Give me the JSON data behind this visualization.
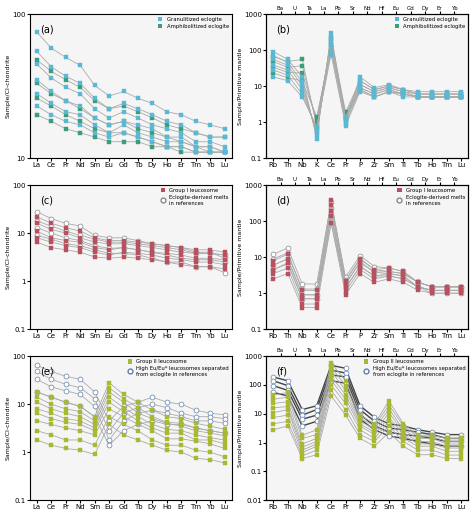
{
  "panel_a": {
    "label": "(a)",
    "elements": [
      "La",
      "Ce",
      "Pr",
      "Nd",
      "Sm",
      "Eu",
      "Gd",
      "Tb",
      "Dy",
      "Ho",
      "Er",
      "Tm",
      "Yb",
      "Lu"
    ],
    "ylabel": "Sample/CI-chondrite",
    "ylim": [
      10,
      100
    ],
    "yticks": [
      10,
      100
    ],
    "ytick_labels": [
      "10",
      "100"
    ],
    "color_gran": "#5bb8d4",
    "color_amphi": "#3a9e78",
    "legend_gran": "Granulitized eclogite",
    "legend_amphi": "Amphibolitized eclogite",
    "series_gran": [
      [
        75,
        58,
        50,
        44,
        32,
        27,
        29,
        26,
        24,
        21,
        20,
        18,
        17,
        16
      ],
      [
        55,
        43,
        37,
        33,
        26,
        22,
        24,
        22,
        20,
        18,
        17,
        15,
        14,
        14
      ],
      [
        45,
        36,
        31,
        28,
        22,
        19,
        21,
        19,
        17,
        16,
        15,
        13,
        13,
        12
      ],
      [
        35,
        29,
        25,
        23,
        19,
        17,
        18,
        17,
        16,
        14,
        14,
        12,
        12,
        11
      ],
      [
        28,
        24,
        21,
        20,
        17,
        15,
        17,
        15,
        14,
        13,
        13,
        12,
        11,
        11
      ],
      [
        23,
        20,
        18,
        17,
        15,
        14,
        15,
        14,
        13,
        12,
        12,
        11,
        11,
        11
      ]
    ],
    "series_amphi": [
      [
        48,
        40,
        35,
        31,
        25,
        22,
        23,
        21,
        19,
        17,
        16,
        15,
        14,
        14
      ],
      [
        33,
        28,
        25,
        22,
        19,
        17,
        18,
        16,
        15,
        14,
        13,
        12,
        12,
        11
      ],
      [
        26,
        23,
        20,
        18,
        16,
        15,
        15,
        14,
        13,
        12,
        12,
        11,
        11,
        11
      ],
      [
        20,
        18,
        16,
        15,
        14,
        13,
        13,
        13,
        12,
        12,
        11,
        11,
        11,
        11
      ]
    ]
  },
  "panel_b": {
    "label": "(b)",
    "elements_top": [
      "Ba",
      "U",
      "Ta",
      "La",
      "Pb",
      "Sr",
      "Nd",
      "Hf",
      "Eu",
      "Gd",
      "Dy",
      "Er",
      "Yb"
    ],
    "elements_bot": [
      "Rb",
      "Th",
      "Nb",
      "K",
      "Ce",
      "Pr",
      "P",
      "Zr",
      "Sm",
      "Ti",
      "Tb",
      "Ho",
      "Tm",
      "Lu"
    ],
    "ylabel": "Sample/Primitive mantle",
    "ylim_log": [
      0.1,
      1000
    ],
    "yticks": [
      0.1,
      1,
      10,
      100,
      1000
    ],
    "ytick_labels": [
      "0.1",
      "1",
      "10",
      "100",
      "1000"
    ],
    "color_gran": "#5bb8d4",
    "color_amphi": "#3a9e78",
    "series_gran": [
      [
        90,
        55,
        18,
        0.35,
        290,
        1.1,
        18,
        9,
        11,
        8,
        7,
        7,
        7,
        7
      ],
      [
        70,
        45,
        13,
        0.45,
        230,
        1.3,
        14,
        8,
        10,
        8,
        6,
        6,
        6,
        6
      ],
      [
        55,
        38,
        10,
        0.5,
        185,
        1.2,
        11,
        7,
        9,
        7,
        6,
        6,
        6,
        6
      ],
      [
        38,
        28,
        8,
        0.55,
        140,
        1.1,
        9,
        6,
        8,
        6,
        5,
        5,
        5,
        5
      ],
      [
        28,
        20,
        6,
        0.65,
        95,
        0.9,
        8,
        5,
        7,
        6,
        5,
        5,
        5,
        5
      ],
      [
        18,
        14,
        5,
        0.75,
        75,
        0.8,
        7,
        5,
        7,
        5,
        5,
        5,
        5,
        5
      ]
    ],
    "series_amphi": [
      [
        65,
        48,
        55,
        0.75,
        210,
        1.9,
        14,
        8,
        10,
        8,
        6,
        6,
        6,
        6
      ],
      [
        48,
        33,
        37,
        0.95,
        170,
        1.7,
        11,
        7,
        9,
        7,
        5,
        5,
        5,
        5
      ],
      [
        33,
        24,
        23,
        1.15,
        140,
        1.4,
        9,
        6,
        8,
        6,
        5,
        5,
        5,
        5
      ],
      [
        23,
        17,
        14,
        1.4,
        110,
        1.2,
        8,
        5,
        7,
        6,
        5,
        5,
        5,
        5
      ]
    ]
  },
  "panel_c": {
    "label": "(c)",
    "elements": [
      "La",
      "Ce",
      "Pr",
      "Nd",
      "Sm",
      "Eu",
      "Gd",
      "Tb",
      "Dy",
      "Ho",
      "Er",
      "Tm",
      "Yb",
      "Lu"
    ],
    "ylabel": "Sample/CI-chondrite",
    "ylim": [
      0.1,
      100
    ],
    "yticks": [
      0.1,
      1,
      10,
      100
    ],
    "ytick_labels": [
      "0.1",
      "1",
      "10",
      "100"
    ],
    "color_groupI": "#b85060",
    "color_eclo": "#b0b0b0",
    "legend_groupI": "Group I leucosome",
    "legend_eclo": "Eclogite-derived melts\nin references",
    "series_groupI": [
      [
        22,
        16,
        13,
        11,
        8,
        7,
        7,
        6.5,
        6,
        5.5,
        5,
        4.5,
        4.5,
        4
      ],
      [
        16,
        12,
        10,
        8,
        6.5,
        6,
        6,
        5.5,
        5,
        4.5,
        4,
        3.8,
        3.8,
        3.5
      ],
      [
        11,
        8,
        7,
        6.5,
        5,
        4.5,
        5,
        4.5,
        4,
        3.8,
        3.5,
        3,
        3,
        2.8
      ],
      [
        8,
        6.5,
        5.5,
        5,
        4,
        3.5,
        4,
        3.8,
        3.5,
        3,
        2.8,
        2.5,
        2.5,
        2.2
      ],
      [
        6.5,
        5,
        4.5,
        4,
        3.2,
        3,
        3.2,
        3,
        2.8,
        2.5,
        2.2,
        2,
        2,
        1.8
      ]
    ],
    "series_eclo": [
      [
        28,
        20,
        16,
        14,
        9,
        8,
        8,
        7,
        6,
        5.5,
        5,
        4,
        4,
        3
      ],
      [
        18,
        14,
        11,
        9,
        7.5,
        6.5,
        6.5,
        6,
        5.5,
        5,
        4.5,
        3.8,
        3.8,
        3.5
      ],
      [
        13,
        10,
        8,
        7,
        5.5,
        4.8,
        5,
        4.5,
        4,
        3.5,
        3,
        2.8,
        2.8,
        2.5
      ],
      [
        9,
        7.5,
        6,
        5.5,
        4.5,
        3.8,
        3.8,
        3.5,
        3,
        2.5,
        2.5,
        2,
        2,
        1.5
      ]
    ]
  },
  "panel_d": {
    "label": "(d)",
    "elements_top": [
      "Ba",
      "U",
      "Ta",
      "La",
      "Pb",
      "Sr",
      "Nd",
      "Hf",
      "Eu",
      "Gd",
      "Dy",
      "Er",
      "Yb"
    ],
    "elements_bot": [
      "Rb",
      "Th",
      "Nb",
      "K",
      "Ce",
      "Pr",
      "P",
      "Zr",
      "Sm",
      "Ti",
      "Tb",
      "Ho",
      "Tm",
      "Lu"
    ],
    "ylabel": "Sample/Primitive mantle",
    "ylim_log": [
      0.1,
      1000
    ],
    "yticks": [
      0.1,
      1,
      10,
      100,
      1000
    ],
    "ytick_labels": [
      "0.1",
      "1",
      "10",
      "100",
      "1000"
    ],
    "color_groupI": "#b85060",
    "color_eclo": "#b0b0b0",
    "series_groupI": [
      [
        8,
        12,
        1.2,
        1.2,
        380,
        2.2,
        9,
        4.5,
        5,
        4,
        2,
        1.5,
        1.5,
        1.5
      ],
      [
        6,
        9,
        0.9,
        0.9,
        280,
        1.8,
        7,
        3.8,
        4,
        3.5,
        2,
        1.5,
        1.5,
        1.5
      ],
      [
        4.5,
        7,
        0.7,
        0.7,
        190,
        1.4,
        5.5,
        3,
        3.5,
        3,
        1.5,
        1.2,
        1.2,
        1.2
      ],
      [
        3.5,
        5,
        0.5,
        0.5,
        140,
        1.1,
        4.5,
        2.5,
        3,
        2.5,
        1.5,
        1.2,
        1.2,
        1.2
      ],
      [
        2.5,
        3.5,
        0.4,
        0.4,
        90,
        0.9,
        3.5,
        2,
        2.5,
        2,
        1.2,
        1,
        1,
        1
      ]
    ],
    "series_eclo": [
      [
        12,
        18,
        1.8,
        1.8,
        330,
        2.8,
        11,
        5.5,
        5,
        4,
        2,
        1.5,
        1.5,
        1.5
      ],
      [
        9,
        13,
        1.3,
        1.3,
        230,
        2.3,
        9,
        4.5,
        4,
        3.5,
        2,
        1.5,
        1.5,
        1.5
      ],
      [
        6,
        9,
        0.9,
        0.9,
        140,
        1.8,
        7.5,
        3.8,
        3.5,
        3,
        1.5,
        1.2,
        1.2,
        1.2
      ],
      [
        4.5,
        6.5,
        0.7,
        0.7,
        90,
        1.4,
        5.5,
        3,
        3,
        2.5,
        1.5,
        1,
        1,
        1
      ]
    ]
  },
  "panel_e": {
    "label": "(e)",
    "elements": [
      "La",
      "Ce",
      "Pr",
      "Nd",
      "Sm",
      "Eu",
      "Gd",
      "Tb",
      "Dy",
      "Ho",
      "Er",
      "Tm",
      "Yb",
      "Lu"
    ],
    "ylabel": "Sample/CI-chondrite",
    "ylim": [
      0.1,
      100
    ],
    "yticks": [
      0.1,
      1,
      10,
      100
    ],
    "ytick_labels": [
      "0.1",
      "1",
      "10",
      "100"
    ],
    "color_groupII": "#a8b830",
    "color_high": "#90b8d8",
    "legend_groupII": "Group II leucosome",
    "legend_high": "High Eu/Eu* leucosomes separated\nfrom eclogite in references",
    "series_groupII": [
      [
        18,
        14,
        11,
        9,
        5.5,
        28,
        16,
        11,
        7.5,
        5.5,
        5,
        4,
        3.5,
        3
      ],
      [
        14,
        10,
        8,
        7,
        4.5,
        22,
        13,
        8.5,
        5.5,
        4.2,
        4,
        3.2,
        2.8,
        2.5
      ],
      [
        11,
        8,
        6.5,
        5.5,
        3.8,
        18,
        11,
        6.5,
        5,
        4,
        3.5,
        2.8,
        2.5,
        2.2
      ],
      [
        8,
        6.5,
        5,
        4.5,
        3.2,
        14,
        8.5,
        5.5,
        3.8,
        3,
        2.8,
        2.3,
        2,
        1.8
      ],
      [
        6.5,
        5,
        4.2,
        3.8,
        2.8,
        11,
        7,
        4.5,
        3.2,
        2.5,
        2.5,
        1.8,
        1.8,
        1.5
      ],
      [
        4.5,
        3.8,
        3.2,
        2.8,
        2.3,
        8,
        5.5,
        3.8,
        2.8,
        1.9,
        1.9,
        1.7,
        1.5,
        1.2
      ],
      [
        2.8,
        2.3,
        1.8,
        1.8,
        1.4,
        5.5,
        3.8,
        2.8,
        1.8,
        1.4,
        1.4,
        1.1,
        1,
        0.8
      ],
      [
        1.8,
        1.4,
        1.2,
        1.1,
        0.9,
        3.8,
        2.3,
        1.8,
        1.4,
        1.1,
        1,
        0.75,
        0.7,
        0.6
      ]
    ],
    "series_high": [
      [
        65,
        48,
        38,
        33,
        18,
        4.5,
        9,
        11,
        14,
        11,
        10,
        7.5,
        6.5,
        6
      ],
      [
        48,
        33,
        26,
        22,
        13,
        2.8,
        6.5,
        8.5,
        10,
        8.5,
        6.5,
        5.5,
        5.5,
        5
      ],
      [
        33,
        23,
        19,
        16,
        9,
        1.8,
        4.5,
        6.5,
        7.5,
        6.5,
        5.5,
        4.5,
        4.5,
        4
      ],
      [
        18,
        14,
        11,
        9,
        5.5,
        1.4,
        2.8,
        3.8,
        4.5,
        3.8,
        3.8,
        3.2,
        2.8,
        2.5
      ]
    ]
  },
  "panel_f": {
    "label": "(f)",
    "elements_top": [
      "Ba",
      "U",
      "Ta",
      "La",
      "Pb",
      "Sr",
      "Nd",
      "Hf",
      "Eu",
      "Gd",
      "Dy",
      "Er",
      "Yb"
    ],
    "elements_bot": [
      "Rb",
      "Th",
      "Nb",
      "K",
      "Ce",
      "Pr",
      "P",
      "Zr",
      "Sm",
      "Ti",
      "Tb",
      "Ho",
      "Tm",
      "Lu"
    ],
    "ylabel": "Sample/Primitive mantle",
    "ylim_log": [
      0.01,
      1000
    ],
    "yticks": [
      0.01,
      0.1,
      1,
      10,
      100,
      1000
    ],
    "ytick_labels": [
      "0.01",
      "0.1",
      "1",
      "10",
      "100",
      "1000"
    ],
    "color_groupII": "#a8b830",
    "color_high": "#90b8d8",
    "series_groupII": [
      [
        45,
        55,
        1.8,
        2.8,
        580,
        140,
        9,
        4.5,
        28,
        4.5,
        1.8,
        1.8,
        1.4,
        1.4
      ],
      [
        32,
        38,
        1.4,
        1.9,
        420,
        95,
        7,
        3.8,
        20,
        3.8,
        1.6,
        1.6,
        1.1,
        1.1
      ],
      [
        23,
        26,
        0.9,
        1.4,
        300,
        65,
        5.5,
        3,
        15,
        2.8,
        1.4,
        1.4,
        0.9,
        0.9
      ],
      [
        16,
        18,
        0.7,
        1.1,
        200,
        46,
        4.5,
        2.3,
        11,
        2.3,
        1.1,
        1.1,
        0.75,
        0.75
      ],
      [
        11,
        14,
        0.55,
        0.9,
        150,
        32,
        3.8,
        1.9,
        7.5,
        1.9,
        0.9,
        0.9,
        0.65,
        0.65
      ],
      [
        7.5,
        9,
        0.45,
        0.75,
        100,
        23,
        2.8,
        1.4,
        5.5,
        1.4,
        0.75,
        0.75,
        0.5,
        0.5
      ],
      [
        4.5,
        5.5,
        0.35,
        0.55,
        65,
        14,
        1.9,
        1.1,
        3.8,
        1.1,
        0.55,
        0.55,
        0.37,
        0.37
      ],
      [
        2.8,
        3.8,
        0.28,
        0.38,
        42,
        9,
        1.4,
        0.75,
        2.3,
        0.75,
        0.38,
        0.38,
        0.28,
        0.28
      ]
    ],
    "series_high": [
      [
        190,
        140,
        14,
        19,
        480,
        380,
        19,
        7.5,
        4.5,
        3.8,
        2.8,
        2.3,
        1.9,
        1.9
      ],
      [
        140,
        95,
        9,
        14,
        330,
        260,
        14,
        5.5,
        3.2,
        2.8,
        2.3,
        1.9,
        1.4,
        1.4
      ],
      [
        95,
        65,
        6.5,
        9,
        225,
        190,
        9.5,
        3.8,
        2.3,
        1.9,
        1.7,
        1.4,
        1.1,
        1.1
      ],
      [
        55,
        42,
        3.8,
        5.5,
        140,
        115,
        6.5,
        2.8,
        1.7,
        1.4,
        1.1,
        0.9,
        0.75,
        0.75
      ]
    ]
  },
  "lc": "#aaaaaa",
  "lw": 0.6,
  "ms": 3.5
}
